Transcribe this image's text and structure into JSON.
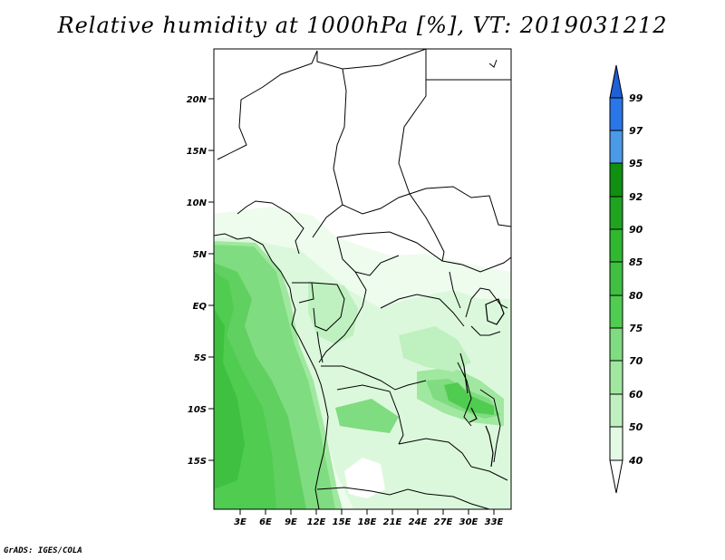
{
  "title": "Relative humidity at 1000hPa [%], VT: 2019031212",
  "credit": "GrADS: IGES/COLA",
  "map": {
    "lat_ticks": [
      "20N",
      "15N",
      "10N",
      "5N",
      "EQ",
      "5S",
      "10S",
      "15S"
    ],
    "lon_ticks": [
      "3E",
      "6E",
      "9E",
      "12E",
      "15E",
      "18E",
      "21E",
      "24E",
      "27E",
      "30E",
      "33E"
    ]
  },
  "colorbar": {
    "labels": [
      "99",
      "97",
      "95",
      "92",
      "90",
      "85",
      "80",
      "75",
      "70",
      "60",
      "50",
      "40"
    ],
    "colors": [
      "#1e60d8",
      "#2a76e8",
      "#4a9ae8",
      "#109010",
      "#20a420",
      "#30b830",
      "#50cc50",
      "#80dc80",
      "#a0e8a0",
      "#bff0bf",
      "#dcf8dc",
      "#eefcee",
      "#ffffff"
    ]
  }
}
